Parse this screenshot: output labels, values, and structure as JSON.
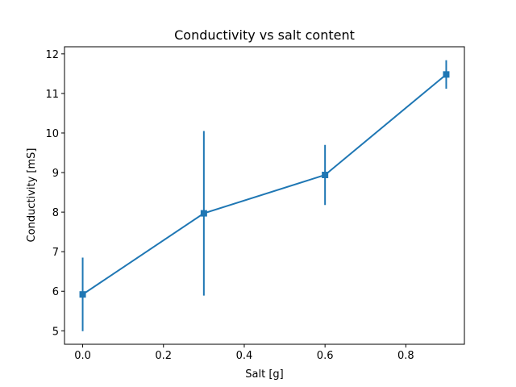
{
  "chart_data": {
    "type": "line",
    "title": "Conductivity vs salt content",
    "xlabel": "Salt [g]",
    "ylabel": "Conductivity [mS]",
    "xlim": [
      -0.045,
      0.945
    ],
    "ylim": [
      4.66,
      12.18
    ],
    "xticks": [
      0.0,
      0.2,
      0.4,
      0.6,
      0.8
    ],
    "xtick_labels": [
      "0.0",
      "0.2",
      "0.4",
      "0.6",
      "0.8"
    ],
    "yticks": [
      5,
      6,
      7,
      8,
      9,
      10,
      11,
      12
    ],
    "ytick_labels": [
      "5",
      "6",
      "7",
      "8",
      "9",
      "10",
      "11",
      "12"
    ],
    "grid": false,
    "series": [
      {
        "color": "#1f77b4",
        "marker": "square",
        "x": [
          0.0,
          0.3,
          0.6,
          0.9
        ],
        "y": [
          5.92,
          7.97,
          8.94,
          11.48
        ],
        "yerr": [
          0.93,
          2.08,
          0.76,
          0.36
        ]
      }
    ]
  }
}
